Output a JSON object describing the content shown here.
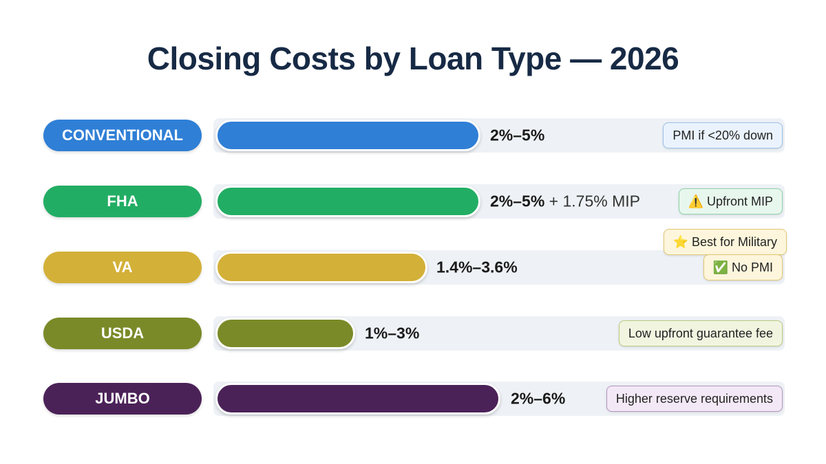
{
  "title": "Closing Costs by Loan Type — 2026",
  "rows": [
    {
      "label": "CONVENTIONAL",
      "range": "2%–5%",
      "notes": [
        "PMI if <20% down"
      ]
    },
    {
      "label": "FHA",
      "range": "2%–5%",
      "extra": "+ 1.75% MIP",
      "notes": [
        "⚠️ Upfront MIP"
      ]
    },
    {
      "label": "VA",
      "range": "1.4%–3.6%",
      "notes": [
        "⭐ Best for Military",
        "✅ No PMI"
      ]
    },
    {
      "label": "USDA",
      "range": "1%–3%",
      "notes": [
        "Low upfront guarantee fee"
      ]
    },
    {
      "label": "JUMBO",
      "range": "2%–6%",
      "notes": [
        "Higher reserve requirements"
      ]
    }
  ]
}
